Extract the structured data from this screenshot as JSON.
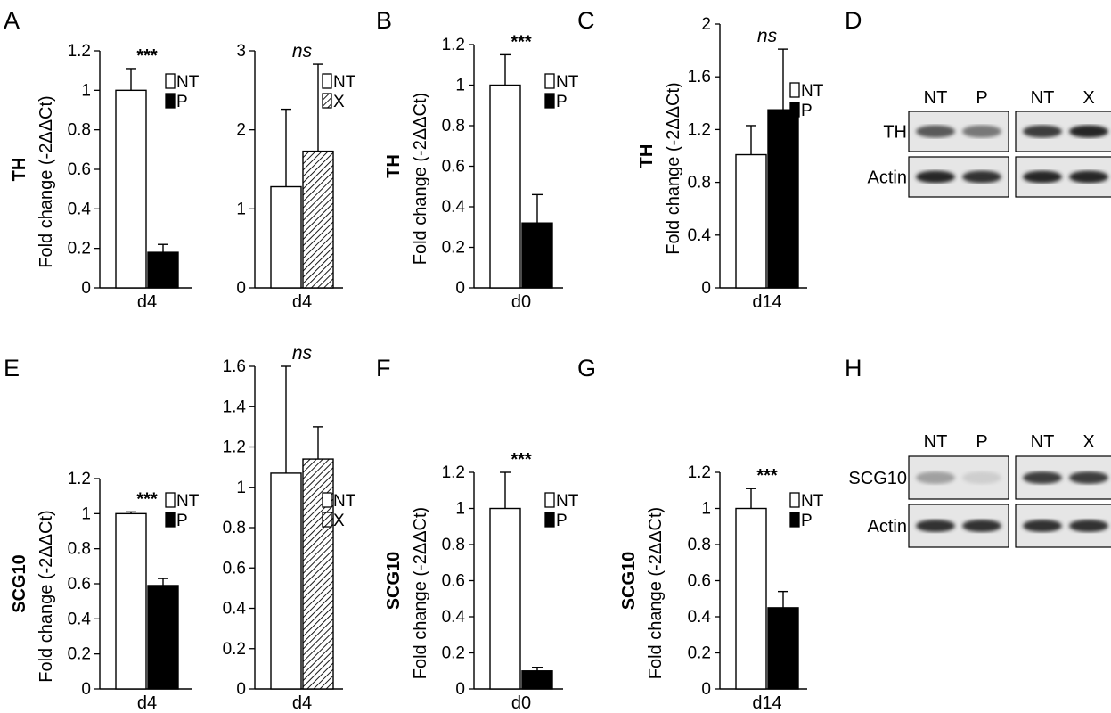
{
  "panel_labels": [
    "A",
    "B",
    "C",
    "D",
    "E",
    "F",
    "G",
    "H"
  ],
  "colors": {
    "nt_fill": "#ffffff",
    "p_fill": "#000000",
    "x_fill": "hatched",
    "axis": "#000000"
  },
  "chart_data": [
    {
      "panel": "A",
      "type": "bar",
      "gene": "TH",
      "ylabel": "Fold change (-2ΔΔCt)",
      "categories": [
        "d4"
      ],
      "ylim": [
        0,
        1.2
      ],
      "yticks": [
        "0",
        "0.2",
        "0.4",
        "0.6",
        "0.8",
        "1",
        "1.2"
      ],
      "series": [
        {
          "name": "NT",
          "values": [
            1.0
          ],
          "errors": [
            0.11
          ]
        },
        {
          "name": "P",
          "values": [
            0.18
          ],
          "errors": [
            0.04
          ]
        }
      ],
      "significance": "***",
      "legend": [
        "NT",
        "P"
      ],
      "legend_position": "right"
    },
    {
      "panel": "A",
      "type": "bar",
      "gene": "",
      "ylabel": "",
      "categories": [
        "d4"
      ],
      "ylim": [
        0,
        3
      ],
      "yticks": [
        "0",
        "1",
        "2",
        "3"
      ],
      "series": [
        {
          "name": "NT",
          "values": [
            1.28
          ],
          "errors": [
            0.98
          ]
        },
        {
          "name": "X",
          "values": [
            1.73
          ],
          "errors": [
            1.1
          ]
        }
      ],
      "significance": "ns",
      "legend": [
        "NT",
        "X"
      ],
      "legend_position": "right"
    },
    {
      "panel": "B",
      "type": "bar",
      "gene": "TH",
      "ylabel": "Fold change (-2ΔΔCt)",
      "categories": [
        "d0"
      ],
      "ylim": [
        0,
        1.2
      ],
      "yticks": [
        "0",
        "0.2",
        "0.4",
        "0.6",
        "0.8",
        "1",
        "1.2"
      ],
      "series": [
        {
          "name": "NT",
          "values": [
            1.0
          ],
          "errors": [
            0.15
          ]
        },
        {
          "name": "P",
          "values": [
            0.32
          ],
          "errors": [
            0.14
          ]
        }
      ],
      "significance": "***",
      "legend": [
        "NT",
        "P"
      ],
      "legend_position": "right"
    },
    {
      "panel": "C",
      "type": "bar",
      "gene": "TH",
      "ylabel": "Fold change (-2ΔΔCt)",
      "categories": [
        "d14"
      ],
      "ylim": [
        0,
        2
      ],
      "yticks": [
        "0",
        "0.4",
        "0.8",
        "1.2",
        "1.6",
        "2"
      ],
      "series": [
        {
          "name": "NT",
          "values": [
            1.01
          ],
          "errors": [
            0.22
          ]
        },
        {
          "name": "P",
          "values": [
            1.35
          ],
          "errors": [
            0.46
          ]
        }
      ],
      "significance": "ns",
      "legend": [
        "NT",
        "P"
      ],
      "legend_position": "right"
    },
    {
      "panel": "E",
      "type": "bar",
      "gene": "SCG10",
      "ylabel": "Fold change (-2ΔΔCt)",
      "categories": [
        "d4"
      ],
      "ylim": [
        0,
        1.2
      ],
      "yticks": [
        "0",
        "0.2",
        "0.4",
        "0.6",
        "0.8",
        "1",
        "1.2"
      ],
      "series": [
        {
          "name": "NT",
          "values": [
            1.0
          ],
          "errors": [
            0.01
          ]
        },
        {
          "name": "P",
          "values": [
            0.59
          ],
          "errors": [
            0.04
          ]
        }
      ],
      "significance": "***",
      "legend": [
        "NT",
        "P"
      ],
      "legend_position": "right"
    },
    {
      "panel": "E",
      "type": "bar",
      "gene": "",
      "ylabel": "",
      "categories": [
        "d4"
      ],
      "ylim": [
        0,
        1.6
      ],
      "yticks": [
        "0",
        "0.2",
        "0.4",
        "0.6",
        "0.8",
        "1",
        "1.2",
        "1.4",
        "1.6"
      ],
      "series": [
        {
          "name": "NT",
          "values": [
            1.07
          ],
          "errors": [
            0.53
          ]
        },
        {
          "name": "X",
          "values": [
            1.14
          ],
          "errors": [
            0.16
          ]
        }
      ],
      "significance": "ns",
      "legend": [
        "NT",
        "X"
      ],
      "legend_position": "right"
    },
    {
      "panel": "F",
      "type": "bar",
      "gene": "SCG10",
      "ylabel": "Fold change (-2ΔΔCt)",
      "categories": [
        "d0"
      ],
      "ylim": [
        0,
        1.2
      ],
      "yticks": [
        "0",
        "0.2",
        "0.4",
        "0.6",
        "0.8",
        "1",
        "1.2"
      ],
      "series": [
        {
          "name": "NT",
          "values": [
            1.0
          ],
          "errors": [
            0.2
          ]
        },
        {
          "name": "P",
          "values": [
            0.1
          ],
          "errors": [
            0.02
          ]
        }
      ],
      "significance": "***",
      "legend": [
        "NT",
        "P"
      ],
      "legend_position": "right"
    },
    {
      "panel": "G",
      "type": "bar",
      "gene": "SCG10",
      "ylabel": "Fold change (-2ΔΔCt)",
      "categories": [
        "d14"
      ],
      "ylim": [
        0,
        1.2
      ],
      "yticks": [
        "0",
        "0.2",
        "0.4",
        "0.6",
        "0.8",
        "1",
        "1.2"
      ],
      "series": [
        {
          "name": "NT",
          "values": [
            1.0
          ],
          "errors": [
            0.11
          ]
        },
        {
          "name": "P",
          "values": [
            0.45
          ],
          "errors": [
            0.09
          ]
        }
      ],
      "significance": "***",
      "legend": [
        "NT",
        "P"
      ],
      "legend_position": "right"
    }
  ],
  "blots": [
    {
      "panel": "D",
      "lanes": [
        "NT",
        "P",
        "NT",
        "X"
      ],
      "rows": [
        {
          "label": "TH",
          "intensity": [
            0.7,
            0.55,
            0.85,
            0.95
          ]
        },
        {
          "label": "Actin",
          "intensity": [
            0.95,
            0.9,
            0.95,
            0.95
          ]
        }
      ]
    },
    {
      "panel": "H",
      "lanes": [
        "NT",
        "P",
        "NT",
        "X"
      ],
      "rows": [
        {
          "label": "SCG10",
          "intensity": [
            0.35,
            0.12,
            0.85,
            0.85
          ]
        },
        {
          "label": "Actin",
          "intensity": [
            0.9,
            0.9,
            0.9,
            0.9
          ]
        }
      ]
    }
  ]
}
